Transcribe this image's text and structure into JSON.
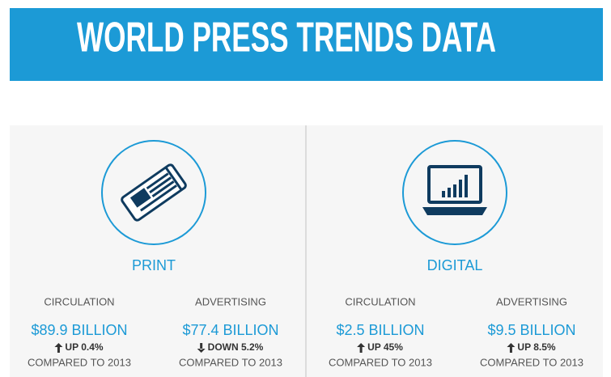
{
  "header": {
    "title": "WORLD PRESS TRENDS DATA"
  },
  "sections": [
    {
      "label": "PRINT",
      "metrics": [
        {
          "label": "CIRCULATION",
          "value": "$89.9 BILLION",
          "change": "UP 0.4%",
          "comparison": "COMPARED TO 2013"
        },
        {
          "label": "ADVERTISING",
          "value": "$77.4 BILLION",
          "change": "DOWN 5.2%",
          "comparison": "COMPARED TO 2013"
        }
      ]
    },
    {
      "label": "DIGITAL",
      "metrics": [
        {
          "label": "CIRCULATION",
          "value": "$2.5 BILLION",
          "change": "UP 45%",
          "comparison": "COMPARED TO 2013"
        },
        {
          "label": "ADVERTISING",
          "value": "$9.5 BILLION",
          "change": "UP 8.5%",
          "comparison": "COMPARED TO 2013"
        }
      ]
    }
  ]
}
